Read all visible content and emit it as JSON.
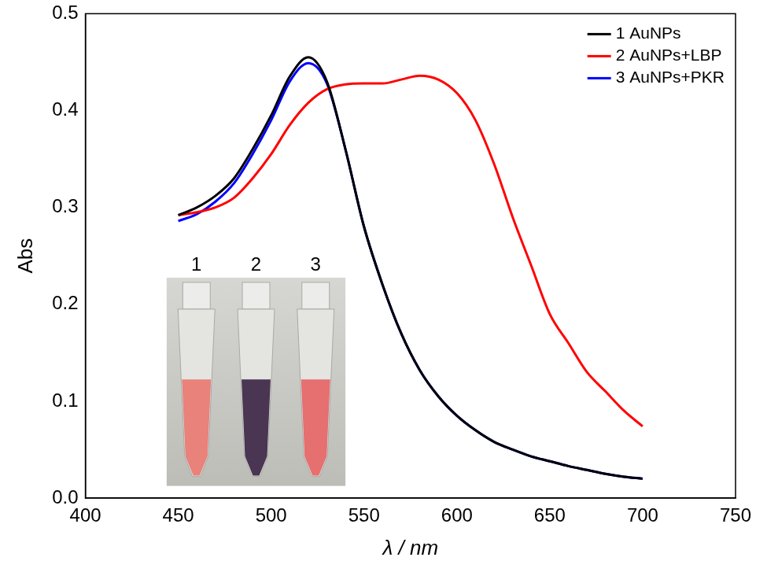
{
  "chart_data": {
    "type": "line",
    "x_label": "λ / nm",
    "y_label": "Abs",
    "x": [
      450,
      460,
      470,
      480,
      490,
      500,
      510,
      520,
      530,
      540,
      550,
      560,
      570,
      580,
      590,
      600,
      610,
      620,
      630,
      640,
      650,
      660,
      670,
      680,
      690,
      700
    ],
    "series": [
      {
        "name": "1 AuNPs",
        "color": "#000000",
        "values": [
          0.292,
          0.3,
          0.312,
          0.33,
          0.36,
          0.395,
          0.435,
          0.455,
          0.43,
          0.36,
          0.28,
          0.22,
          0.17,
          0.132,
          0.105,
          0.085,
          0.07,
          0.058,
          0.05,
          0.043,
          0.038,
          0.033,
          0.029,
          0.025,
          0.022,
          0.02
        ]
      },
      {
        "name": "2 AuNPs+LBP",
        "color": "#ff0000",
        "values": [
          0.292,
          0.295,
          0.3,
          0.31,
          0.33,
          0.355,
          0.385,
          0.408,
          0.422,
          0.427,
          0.428,
          0.428,
          0.432,
          0.436,
          0.432,
          0.418,
          0.39,
          0.345,
          0.29,
          0.24,
          0.19,
          0.16,
          0.13,
          0.11,
          0.09,
          0.074
        ]
      },
      {
        "name": "3 AuNPs+PKR",
        "color": "#0000ff",
        "values": [
          0.286,
          0.293,
          0.306,
          0.325,
          0.355,
          0.39,
          0.43,
          0.449,
          0.428,
          0.36,
          0.28,
          0.22,
          0.17,
          0.132,
          0.105,
          0.085,
          0.07,
          0.058,
          0.05,
          0.043,
          0.038,
          0.033,
          0.029,
          0.025,
          0.022,
          0.02
        ]
      }
    ],
    "xlim": [
      400,
      750
    ],
    "ylim": [
      0,
      0.5
    ],
    "xticks": [
      400,
      450,
      500,
      550,
      600,
      650,
      700,
      750
    ],
    "yticks": [
      {
        "value": 0,
        "label": "0.0"
      },
      0.1,
      0.2,
      0.3,
      0.4,
      0.5
    ],
    "grid": false,
    "legend": "upper right",
    "annotations": [
      {
        "text": "1",
        "color": "#e8827a"
      },
      {
        "text": "2",
        "color": "#4a3552"
      },
      {
        "text": "3",
        "color": "#e66f6f"
      }
    ]
  }
}
